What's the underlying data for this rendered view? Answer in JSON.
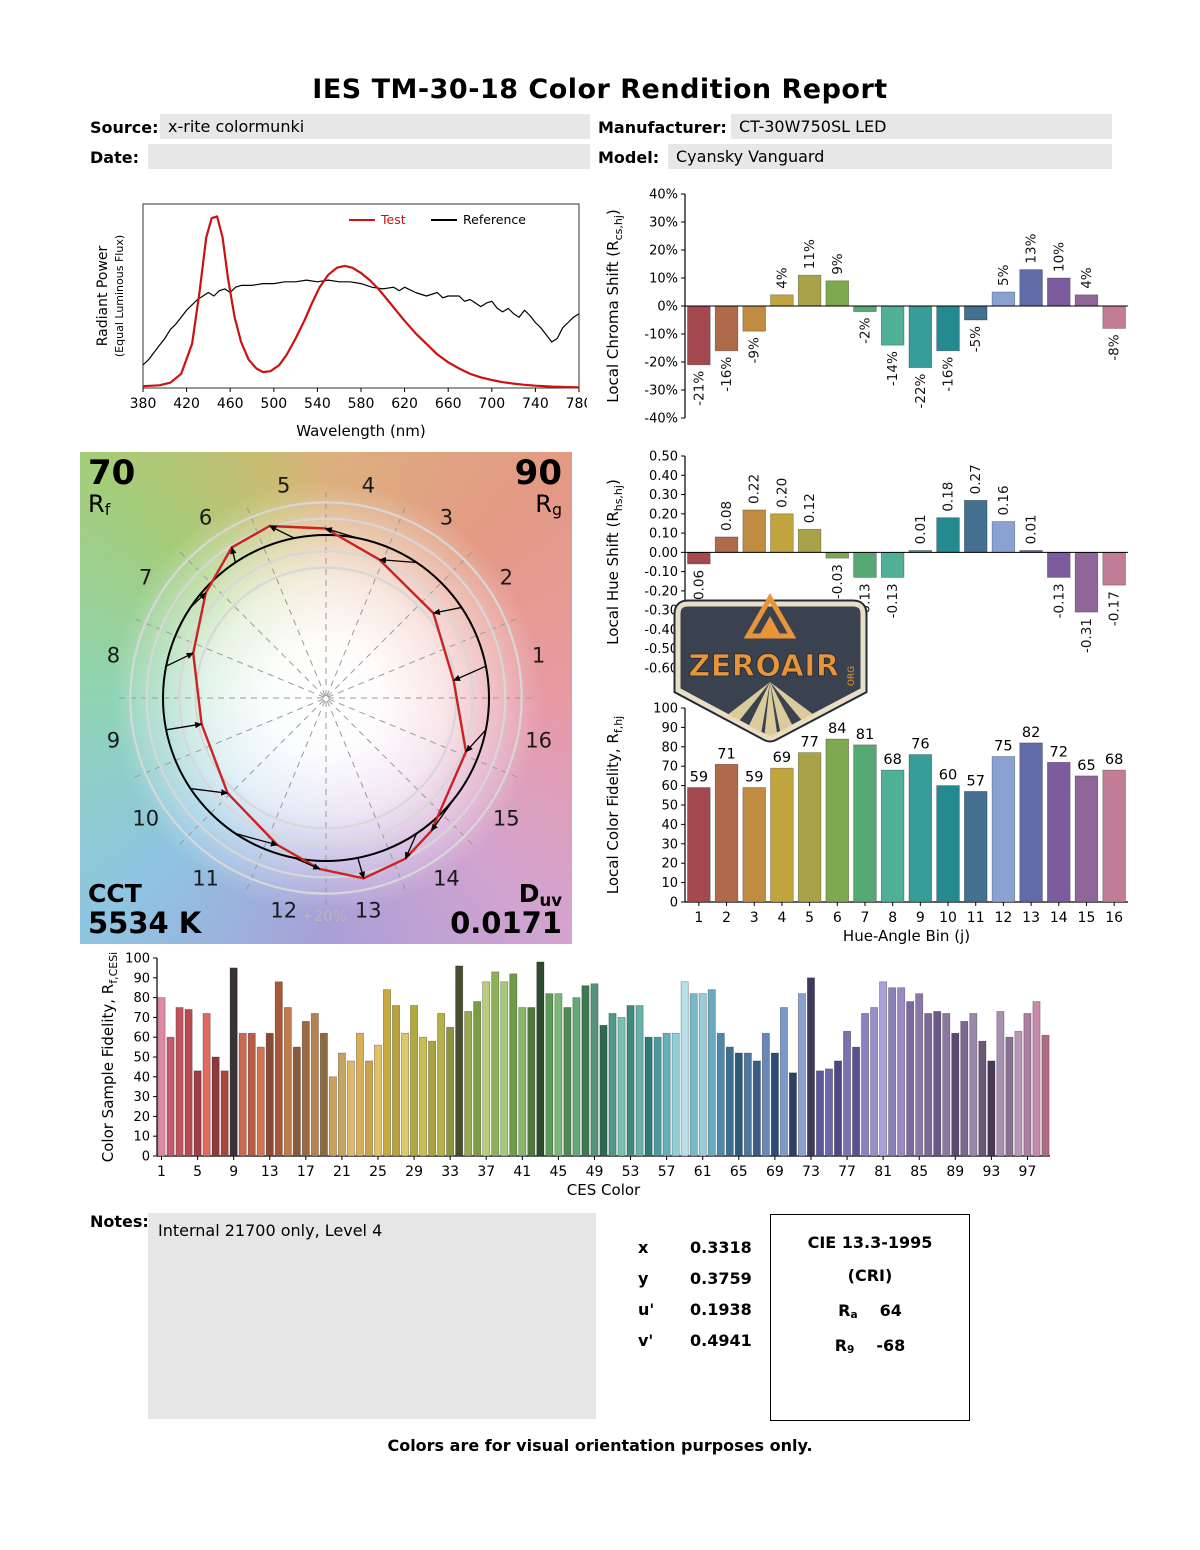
{
  "title": "IES TM-30-18 Color Rendition Report",
  "header": {
    "source_label": "Source:",
    "source_value": "x-rite colormunki",
    "manufacturer_label": "Manufacturer:",
    "manufacturer_value": "CT-30W750SL LED",
    "date_label": "Date:",
    "date_value": "",
    "model_label": "Model:",
    "model_value": "Cyansky Vanguard"
  },
  "hue_bin_colors": [
    "#a54950",
    "#ae6a4a",
    "#c08c42",
    "#c2a43e",
    "#a8a348",
    "#7fa94f",
    "#55a873",
    "#4fb095",
    "#389d98",
    "#258a90",
    "#43708f",
    "#8aa2d2",
    "#5f6ca8",
    "#7d5b9f",
    "#90659a",
    "#c07d95"
  ],
  "chart_data": [
    {
      "id": "spd",
      "type": "line",
      "xlabel": "Wavelength (nm)",
      "ylabel": "Radiant Power",
      "ylabel2": "(Equal Luminous Flux)",
      "x_ticks": [
        380,
        420,
        460,
        500,
        540,
        580,
        620,
        660,
        700,
        740,
        780
      ],
      "xlim": [
        380,
        780
      ],
      "series": [
        {
          "name": "Test",
          "color": "#cc1111",
          "points": [
            [
              380,
              0.01
            ],
            [
              395,
              0.015
            ],
            [
              405,
              0.03
            ],
            [
              415,
              0.08
            ],
            [
              425,
              0.25
            ],
            [
              432,
              0.55
            ],
            [
              438,
              0.85
            ],
            [
              443,
              0.96
            ],
            [
              448,
              0.97
            ],
            [
              453,
              0.85
            ],
            [
              458,
              0.62
            ],
            [
              464,
              0.4
            ],
            [
              470,
              0.26
            ],
            [
              477,
              0.16
            ],
            [
              484,
              0.11
            ],
            [
              490,
              0.09
            ],
            [
              497,
              0.095
            ],
            [
              505,
              0.13
            ],
            [
              512,
              0.19
            ],
            [
              520,
              0.28
            ],
            [
              528,
              0.38
            ],
            [
              535,
              0.48
            ],
            [
              542,
              0.57
            ],
            [
              550,
              0.64
            ],
            [
              558,
              0.68
            ],
            [
              565,
              0.69
            ],
            [
              572,
              0.68
            ],
            [
              580,
              0.65
            ],
            [
              588,
              0.61
            ],
            [
              596,
              0.56
            ],
            [
              604,
              0.5
            ],
            [
              612,
              0.44
            ],
            [
              620,
              0.38
            ],
            [
              630,
              0.31
            ],
            [
              640,
              0.25
            ],
            [
              650,
              0.19
            ],
            [
              660,
              0.145
            ],
            [
              670,
              0.11
            ],
            [
              680,
              0.08
            ],
            [
              690,
              0.06
            ],
            [
              700,
              0.045
            ],
            [
              710,
              0.033
            ],
            [
              720,
              0.025
            ],
            [
              730,
              0.018
            ],
            [
              740,
              0.013
            ],
            [
              755,
              0.008
            ],
            [
              770,
              0.005
            ],
            [
              780,
              0.004
            ]
          ]
        },
        {
          "name": "Reference",
          "color": "#000000",
          "points": [
            [
              380,
              0.13
            ],
            [
              385,
              0.16
            ],
            [
              390,
              0.2
            ],
            [
              395,
              0.24
            ],
            [
              400,
              0.28
            ],
            [
              405,
              0.33
            ],
            [
              410,
              0.36
            ],
            [
              415,
              0.4
            ],
            [
              420,
              0.44
            ],
            [
              425,
              0.47
            ],
            [
              430,
              0.5
            ],
            [
              435,
              0.52
            ],
            [
              440,
              0.54
            ],
            [
              445,
              0.52
            ],
            [
              450,
              0.55
            ],
            [
              455,
              0.56
            ],
            [
              460,
              0.54
            ],
            [
              465,
              0.57
            ],
            [
              470,
              0.58
            ],
            [
              480,
              0.58
            ],
            [
              490,
              0.59
            ],
            [
              500,
              0.59
            ],
            [
              510,
              0.6
            ],
            [
              520,
              0.6
            ],
            [
              530,
              0.61
            ],
            [
              540,
              0.6
            ],
            [
              550,
              0.61
            ],
            [
              560,
              0.6
            ],
            [
              570,
              0.6
            ],
            [
              580,
              0.59
            ],
            [
              590,
              0.57
            ],
            [
              600,
              0.56
            ],
            [
              610,
              0.57
            ],
            [
              615,
              0.55
            ],
            [
              620,
              0.57
            ],
            [
              630,
              0.54
            ],
            [
              640,
              0.52
            ],
            [
              650,
              0.54
            ],
            [
              655,
              0.51
            ],
            [
              660,
              0.52
            ],
            [
              670,
              0.52
            ],
            [
              675,
              0.49
            ],
            [
              680,
              0.5
            ],
            [
              690,
              0.46
            ],
            [
              695,
              0.48
            ],
            [
              700,
              0.49
            ],
            [
              705,
              0.45
            ],
            [
              710,
              0.43
            ],
            [
              715,
              0.45
            ],
            [
              720,
              0.42
            ],
            [
              725,
              0.4
            ],
            [
              730,
              0.44
            ],
            [
              735,
              0.41
            ],
            [
              740,
              0.37
            ],
            [
              745,
              0.34
            ],
            [
              750,
              0.3
            ],
            [
              755,
              0.26
            ],
            [
              760,
              0.28
            ],
            [
              765,
              0.34
            ],
            [
              770,
              0.37
            ],
            [
              775,
              0.4
            ],
            [
              780,
              0.42
            ]
          ]
        }
      ]
    },
    {
      "id": "local_chroma_shift",
      "type": "bar",
      "ylabel": [
        [
          "Local Chroma Shift (R",
          0
        ],
        [
          "cs,hj",
          1
        ],
        [
          ")",
          0
        ]
      ],
      "ymin": -40,
      "ymax": 40,
      "ystep": 10,
      "format": "pct",
      "categories": [
        1,
        2,
        3,
        4,
        5,
        6,
        7,
        8,
        9,
        10,
        11,
        12,
        13,
        14,
        15,
        16
      ],
      "values": [
        -21,
        -16,
        -9,
        4,
        11,
        9,
        -2,
        -14,
        -22,
        -16,
        -5,
        5,
        13,
        10,
        4,
        -8
      ],
      "labels": [
        "-21%",
        "-16%",
        "-9%",
        "4%",
        "11%",
        "9%",
        "-2%",
        "-14%",
        "-22%",
        "-16%",
        "-5%",
        "5%",
        "13%",
        "10%",
        "4%",
        "-8%"
      ]
    },
    {
      "id": "local_hue_shift",
      "type": "bar",
      "ylabel": [
        [
          "Local Hue Shift (R",
          0
        ],
        [
          "hs,hj",
          1
        ],
        [
          ")",
          0
        ]
      ],
      "ymin": -0.6,
      "ymax": 0.5,
      "ystep": 0.1,
      "format": "dec2",
      "categories": [
        1,
        2,
        3,
        4,
        5,
        6,
        7,
        8,
        9,
        10,
        11,
        12,
        13,
        14,
        15,
        16
      ],
      "values": [
        -0.06,
        0.08,
        0.22,
        0.2,
        0.12,
        -0.03,
        -0.13,
        -0.13,
        0.01,
        0.18,
        0.27,
        0.16,
        0.01,
        -0.13,
        -0.31,
        -0.17
      ],
      "labels": [
        "-0.06",
        "0.08",
        "0.22",
        "0.20",
        "0.12",
        "-0.03",
        "-0.13",
        "-0.13",
        "0.01",
        "0.18",
        "0.27",
        "0.16",
        "0.01",
        "-0.13",
        "-0.31",
        "-0.17"
      ]
    },
    {
      "id": "local_color_fidelity",
      "type": "bar",
      "ylabel": [
        [
          "Local Color Fidelity, R",
          0
        ],
        [
          "f,hj",
          1
        ]
      ],
      "xlabel": "Hue-Angle Bin (j)",
      "ymin": 0,
      "ymax": 100,
      "ystep": 10,
      "format": "int",
      "categories": [
        1,
        2,
        3,
        4,
        5,
        6,
        7,
        8,
        9,
        10,
        11,
        12,
        13,
        14,
        15,
        16
      ],
      "values": [
        59,
        71,
        59,
        69,
        77,
        84,
        81,
        68,
        76,
        60,
        57,
        75,
        82,
        72,
        65,
        68
      ]
    },
    {
      "id": "ces_fidelity",
      "type": "bar",
      "ylabel": [
        [
          "Color Sample Fidelity, R",
          0
        ],
        [
          "f,CESi",
          1
        ]
      ],
      "xlabel": "CES Color",
      "ymin": 0,
      "ymax": 100,
      "ystep": 10,
      "format": "int",
      "xtick_every": 4,
      "values": [
        80,
        60,
        75,
        74,
        43,
        72,
        50,
        43,
        95,
        62,
        62,
        55,
        62,
        88,
        75,
        55,
        68,
        72,
        62,
        40,
        52,
        48,
        62,
        48,
        56,
        84,
        76,
        62,
        76,
        60,
        58,
        72,
        65,
        96,
        73,
        78,
        88,
        93,
        88,
        92,
        75,
        75,
        98,
        82,
        82,
        75,
        80,
        86,
        87,
        66,
        72,
        70,
        76,
        76,
        60,
        60,
        62,
        62,
        88,
        82,
        82,
        84,
        62,
        55,
        52,
        52,
        48,
        62,
        52,
        75,
        42,
        82,
        90,
        43,
        44,
        48,
        63,
        55,
        72,
        75,
        88,
        85,
        85,
        78,
        82,
        72,
        73,
        72,
        62,
        68,
        72,
        58,
        48,
        73,
        60,
        63,
        72,
        78,
        61
      ],
      "colors": [
        "#dd8aa2",
        "#c4596f",
        "#c1555e",
        "#b84c51",
        "#a03e42",
        "#e06a5d",
        "#8f3a3a",
        "#aa4840",
        "#3a3236",
        "#c96a52",
        "#b85c43",
        "#d3764f",
        "#8a4a38",
        "#a85638",
        "#c27a4a",
        "#8a5a3a",
        "#9a6a42",
        "#b5834e",
        "#8a6a3e",
        "#caa05a",
        "#c4a45e",
        "#e0b86a",
        "#d9ae55",
        "#caa24a",
        "#e3c063",
        "#c7a93f",
        "#baa23a",
        "#ddc768",
        "#b3a83e",
        "#c9bc52",
        "#a9a33c",
        "#b5b048",
        "#8f923e",
        "#494d2e",
        "#9aa84e",
        "#7e9a44",
        "#b9cc7a",
        "#8fb05a",
        "#a4c978",
        "#6f9a4a",
        "#87b868",
        "#4e7a3c",
        "#2f4a2c",
        "#5e9a55",
        "#79b878",
        "#4e8a55",
        "#63a878",
        "#3e7a52",
        "#57927a",
        "#2e6a52",
        "#4e9a88",
        "#79c0b0",
        "#3e8a80",
        "#68b0a8",
        "#2e7a78",
        "#4e9a9a",
        "#63b0b8",
        "#8fd0d8",
        "#b8e0e8",
        "#79b8c8",
        "#9accd8",
        "#68a8c0",
        "#4e88a8",
        "#3a708f",
        "#2e5a78",
        "#4e78a0",
        "#3a5a88",
        "#6888b8",
        "#2e4a78",
        "#7a98c8",
        "#2e3e68",
        "#8aa0d0",
        "#3e3a5e",
        "#5a5a9a",
        "#6a68aa",
        "#4a4888",
        "#7a72b0",
        "#5a5290",
        "#8a82c0",
        "#9a8ec8",
        "#aaa0d8",
        "#8a80b8",
        "#9a88c0",
        "#7a68a0",
        "#8a78a8",
        "#7a6898",
        "#6a5888",
        "#8a78a0",
        "#5a4a70",
        "#7a6890",
        "#9a88a8",
        "#6a5878",
        "#4a3a58",
        "#a890b0",
        "#8a7090",
        "#b898b8",
        "#aa80a0",
        "#c88aa8",
        "#b06a88"
      ]
    }
  ],
  "cvg": {
    "rf_value": "70",
    "rf_main": "R",
    "rf_sub": "f",
    "rg_value": "90",
    "rg_main": "R",
    "rg_sub": "g",
    "cct_label": "CCT",
    "cct_value": "5534 K",
    "duv_main": "D",
    "duv_sub": "uv",
    "duv_value": "0.0171",
    "plus20_label": "+20%",
    "bin_count": 16
  },
  "logo": {
    "text": "ZEROAIR",
    "suffix": "ORG"
  },
  "notes": {
    "label": "Notes:",
    "text": "Internal 21700 only, Level 4"
  },
  "chromaticity": {
    "rows": [
      {
        "label": "x",
        "value": "0.3318"
      },
      {
        "label": "y",
        "value": "0.3759"
      },
      {
        "label": "u'",
        "value": "0.1938"
      },
      {
        "label": "v'",
        "value": "0.4941"
      }
    ]
  },
  "cie": {
    "title": "CIE 13.3-1995",
    "subtitle": "(CRI)",
    "ra_main": "R",
    "ra_sub": "a",
    "ra_value": "64",
    "r9_main": "R",
    "r9_sub": "9",
    "r9_value": "-68"
  },
  "footer": "Colors are for visual orientation purposes only."
}
